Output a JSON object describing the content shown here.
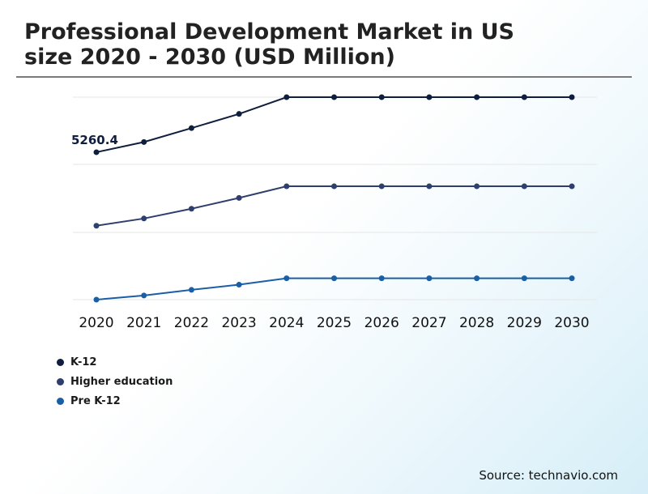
{
  "title": {
    "line1": "Professional Development Market in US",
    "line2": "size 2020 - 2030 (USD Million)"
  },
  "source": "Source: technavio.com",
  "chart_data": {
    "type": "line",
    "title": "Professional Development Market in US size 2020 - 2030 (USD Million)",
    "categories": [
      "2020",
      "2021",
      "2022",
      "2023",
      "2024",
      "2025",
      "2026",
      "2027",
      "2028",
      "2029",
      "2030"
    ],
    "series": [
      {
        "name": "K-12",
        "color": "#0f1e3d",
        "values": [
          5260.4,
          5300,
          5354,
          5409,
          5474,
          5474,
          5474,
          5474,
          5474,
          5474,
          5474
        ]
      },
      {
        "name": "Higher education",
        "color": "#2e3f6e",
        "values": [
          4975,
          5003,
          5041,
          5083,
          5128,
          5128,
          5128,
          5128,
          5128,
          5128,
          5128
        ]
      },
      {
        "name": "Pre K-12",
        "color": "#1a5fa6",
        "values": [
          4688,
          4704,
          4726,
          4746,
          4771,
          4771,
          4771,
          4771,
          4771,
          4771,
          4771
        ]
      }
    ],
    "data_labels": [
      {
        "series": "K-12",
        "category": "2020",
        "text": "5260.4"
      }
    ],
    "ylim": [
      4688,
      5474
    ],
    "xlabel": "",
    "ylabel": "",
    "grid": true,
    "legend_position": "bottom-left",
    "y_tick_labels_shown": false
  }
}
